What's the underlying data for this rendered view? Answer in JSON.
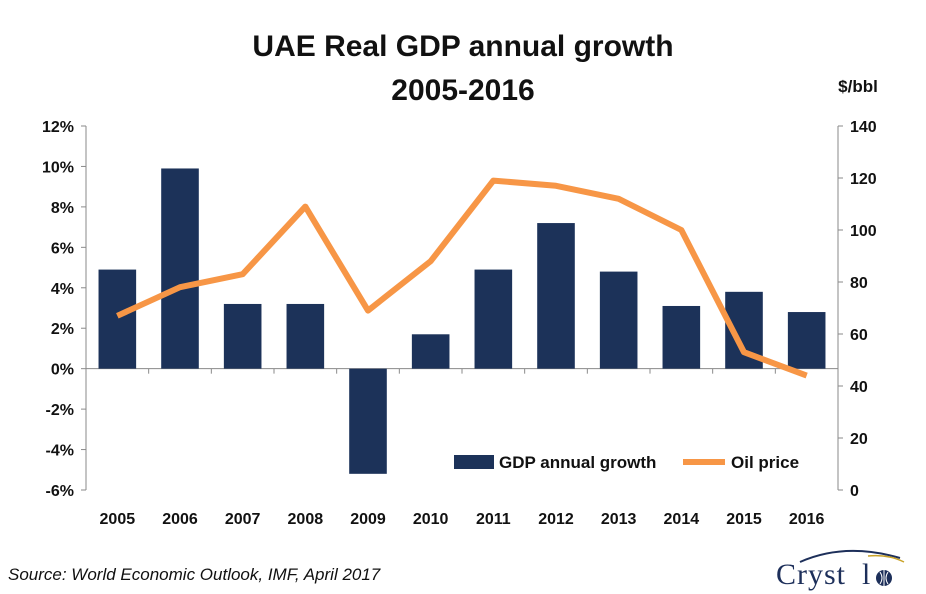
{
  "chart_data": {
    "type": "bar",
    "title": [
      "UAE Real GDP annual growth",
      "2005-2016"
    ],
    "categories": [
      "2005",
      "2006",
      "2007",
      "2008",
      "2009",
      "2010",
      "2011",
      "2012",
      "2013",
      "2014",
      "2015",
      "2016"
    ],
    "series": [
      {
        "name": "GDP annual growth",
        "type": "bar",
        "axis": "left",
        "color": "#1c3259",
        "values": [
          4.9,
          9.9,
          3.2,
          3.2,
          -5.2,
          1.7,
          4.9,
          7.2,
          4.8,
          3.1,
          3.8,
          2.8
        ]
      },
      {
        "name": "Oil price",
        "type": "line",
        "axis": "right",
        "color": "#f79646",
        "values": [
          67,
          78,
          83,
          109,
          69,
          88,
          119,
          117,
          112,
          100,
          53,
          44
        ]
      }
    ],
    "y_left": {
      "min": -6,
      "max": 12,
      "step": 2,
      "ticks": [
        "-6%",
        "-4%",
        "-2%",
        "0%",
        "2%",
        "4%",
        "6%",
        "8%",
        "10%",
        "12%"
      ]
    },
    "y_right": {
      "min": 0,
      "max": 140,
      "step": 20,
      "label": "$/bbl",
      "ticks": [
        "0",
        "20",
        "40",
        "60",
        "80",
        "100",
        "120",
        "140"
      ]
    },
    "legend": "bottom-right",
    "grid": false
  },
  "source": "Source: World Economic Outlook, IMF, April 2017",
  "logo": {
    "text": "Cryst l",
    "icon": "crystol-globe-icon"
  }
}
